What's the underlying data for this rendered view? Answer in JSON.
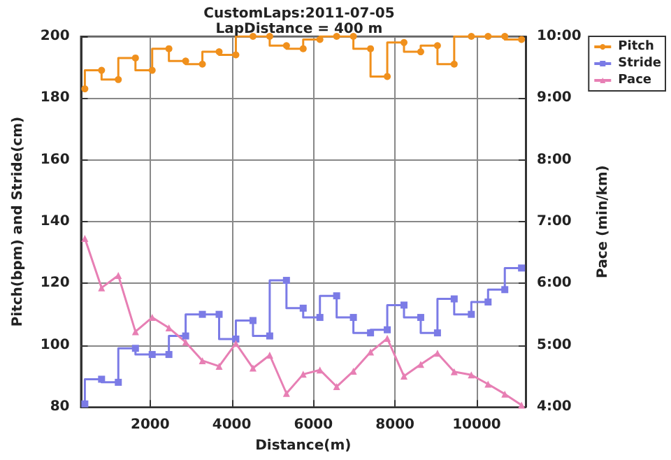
{
  "chart_data": {
    "type": "step",
    "title": "CustomLaps:2011-07-05",
    "subtitle": "LapDistance = 400 m",
    "xlabel": "Distance(m)",
    "ylabel": "Pitch(bpm) and Stride(cm)",
    "y2label": "Pace (min/km)",
    "x": [
      400,
      810,
      1220,
      1640,
      2050,
      2460,
      2870,
      3280,
      3690,
      4100,
      4520,
      4930,
      5340,
      5750,
      6160,
      6570,
      6980,
      7400,
      7810,
      8220,
      8630,
      9040,
      9450,
      9870,
      10280,
      10690,
      11100
    ],
    "series": [
      {
        "name": "Pitch",
        "type": "step",
        "color": "#f0901c",
        "marker": "circle",
        "values": [
          183,
          189,
          186,
          193,
          189,
          196,
          192,
          191,
          195,
          194,
          200,
          200,
          197,
          196,
          199,
          200,
          200,
          196,
          187,
          198,
          195,
          197,
          191,
          200,
          200,
          200,
          199
        ]
      },
      {
        "name": "Stride",
        "type": "step",
        "color": "#7b7be6",
        "marker": "square",
        "values": [
          81,
          89,
          88,
          99,
          97,
          97,
          103,
          110,
          110,
          102,
          108,
          103,
          121,
          112,
          109,
          116,
          109,
          104,
          105,
          113,
          109,
          104,
          115,
          110,
          114,
          118,
          125
        ]
      },
      {
        "name": "Pace",
        "type": "line",
        "axis": "y2",
        "color": "#e77fb4",
        "marker": "triangle",
        "values": [
          6.73,
          5.93,
          6.13,
          5.22,
          5.45,
          5.28,
          5.05,
          4.75,
          4.66,
          5.03,
          4.63,
          4.84,
          4.22,
          4.53,
          4.6,
          4.33,
          4.58,
          4.89,
          5.11,
          4.5,
          4.69,
          4.87,
          4.57,
          4.52,
          4.37,
          4.21,
          4.03
        ]
      }
    ],
    "xlim": [
      300,
      11200
    ],
    "xticks": [
      2000,
      4000,
      6000,
      8000,
      10000
    ],
    "ylim": [
      80,
      200
    ],
    "yticks": [
      80,
      100,
      120,
      140,
      160,
      180,
      200
    ],
    "y2lim": [
      4,
      10
    ],
    "y2ticks": [
      {
        "value": 4,
        "label": "4:00"
      },
      {
        "value": 5,
        "label": "5:00"
      },
      {
        "value": 6,
        "label": "6:00"
      },
      {
        "value": 7,
        "label": "7:00"
      },
      {
        "value": 8,
        "label": "8:00"
      },
      {
        "value": 9,
        "label": "9:00"
      },
      {
        "value": 10,
        "label": "10:00"
      }
    ],
    "grid": true,
    "legend": "top right"
  }
}
